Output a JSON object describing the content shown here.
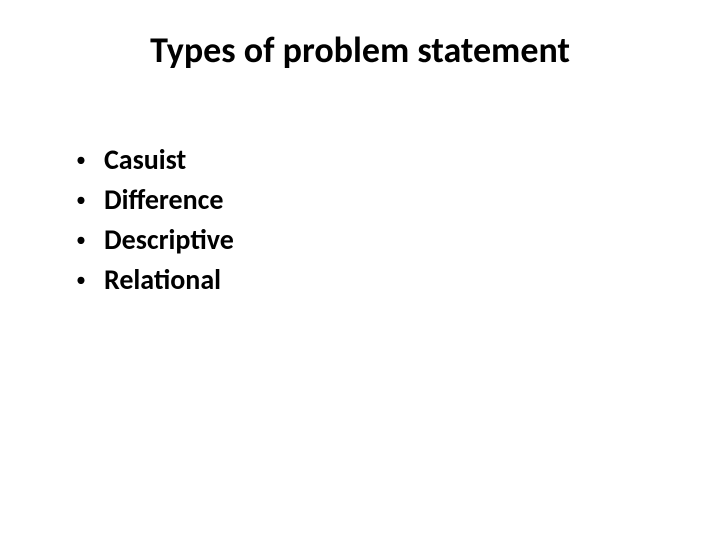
{
  "slide": {
    "title": "Types of problem statement",
    "title_fontsize": 36,
    "title_color": "#000000",
    "title_fontweight": "bold",
    "background_color": "#ffffff",
    "bullets": [
      {
        "text": "Casuist"
      },
      {
        "text": "Difference"
      },
      {
        "text": "Descriptive"
      },
      {
        "text": "Relational"
      }
    ],
    "bullet_fontsize": 28,
    "bullet_color": "#000000",
    "bullet_fontweight": "bold",
    "bullet_marker": "•",
    "bullet_marker_color": "#000000"
  }
}
